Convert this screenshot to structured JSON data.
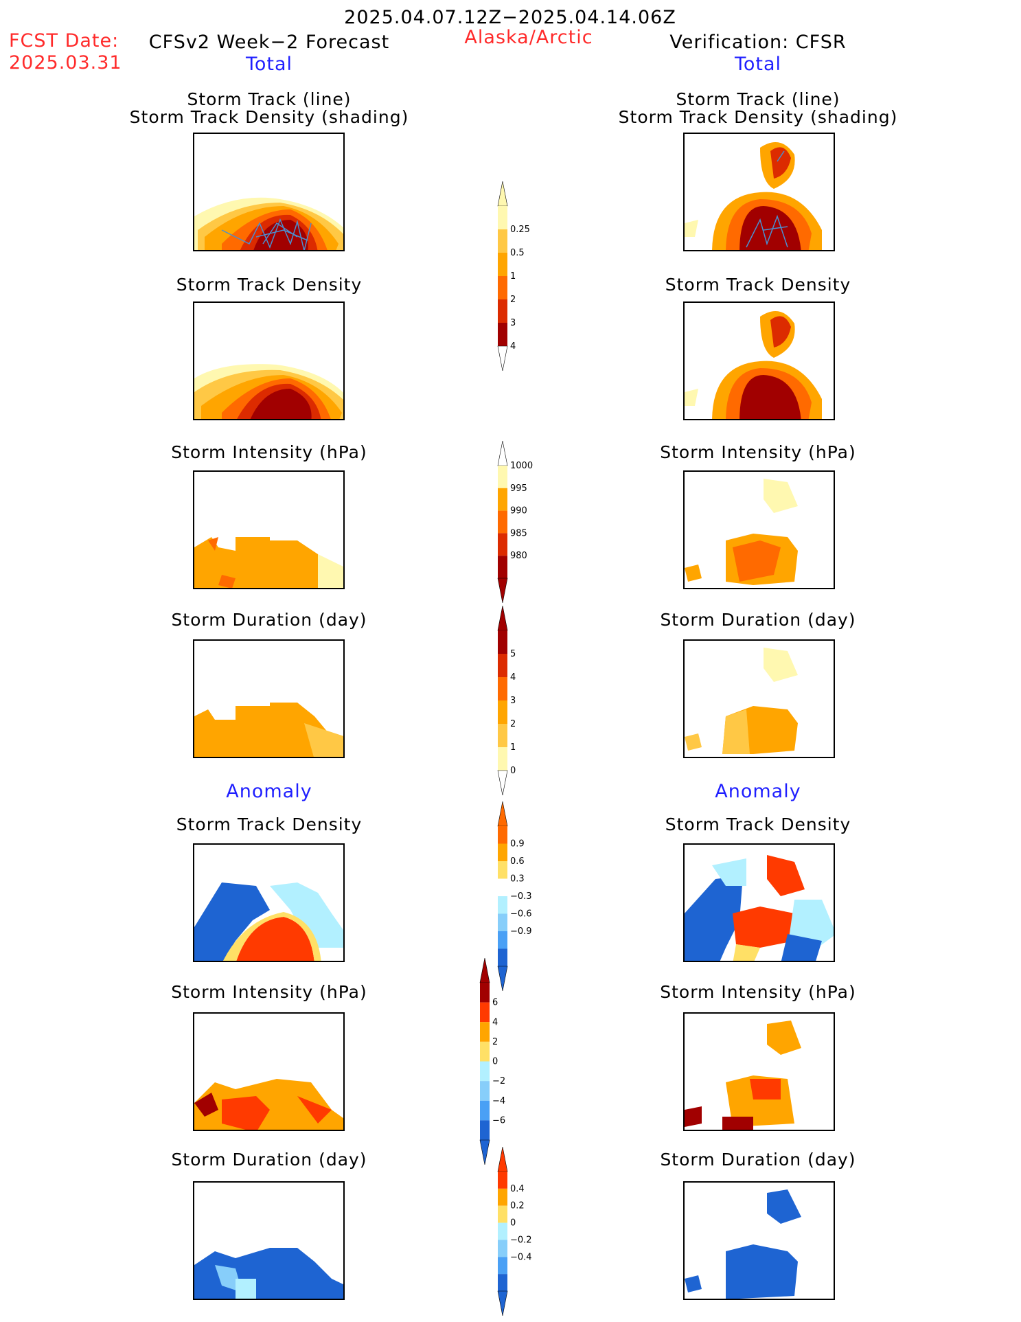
{
  "header": {
    "date_range": "2025.04.07.12Z−2025.04.14.06Z",
    "region": "Alaska/Arctic",
    "fcst_label": "FCST Date:",
    "fcst_date": "2025.03.31",
    "left_title": "CFSv2 Week−2 Forecast",
    "right_title": "Verification: CFSR",
    "total_left": "Total",
    "total_right": "Total",
    "anomaly_left": "Anomaly",
    "anomaly_right": "Anomaly"
  },
  "colors": {
    "deep_red": "#a10000",
    "red": "#dc2b00",
    "orange_red": "#ff6a00",
    "orange": "#ffa500",
    "light_orange": "#ffc845",
    "pale_yellow": "#fff8b0",
    "cyan": "#b2f0ff",
    "light_blue": "#87cefa",
    "blue": "#4aa0f5",
    "dark_blue": "#1e64d2",
    "track": "#4a8fd0"
  },
  "panels": {
    "left": [
      {
        "title": [
          "Storm Track (line)",
          "Storm Track Density (shading)"
        ]
      },
      {
        "title": [
          "Storm Track Density"
        ]
      },
      {
        "title": [
          "Storm Intensity (hPa)"
        ]
      },
      {
        "title": [
          "Storm Duration (day)"
        ]
      },
      {
        "title": [
          "Storm Track Density"
        ]
      },
      {
        "title": [
          "Storm Intensity (hPa)"
        ]
      },
      {
        "title": [
          "Storm Duration (day)"
        ]
      }
    ],
    "right": [
      {
        "title": [
          "Storm Track (line)",
          "Storm Track Density (shading)"
        ]
      },
      {
        "title": [
          "Storm Track Density"
        ]
      },
      {
        "title": [
          "Storm Intensity (hPa)"
        ]
      },
      {
        "title": [
          "Storm Duration (day)"
        ]
      },
      {
        "title": [
          "Storm Track Density"
        ]
      },
      {
        "title": [
          "Storm Intensity (hPa)"
        ]
      },
      {
        "title": [
          "Storm Duration (day)"
        ]
      }
    ]
  },
  "chart_data": [
    {
      "type": "heatmap",
      "colorbar": "Total Storm Track Density",
      "levels": [
        "0.25",
        "0.5",
        "1",
        "2",
        "3",
        "4"
      ],
      "colors": [
        "#fff8b0",
        "#ffc845",
        "#ffa500",
        "#ff6a00",
        "#dc2b00",
        "#a10000"
      ],
      "extend": "max"
    },
    {
      "type": "heatmap",
      "colorbar": "Total Storm Intensity (hPa)",
      "levels": [
        "1000",
        "995",
        "990",
        "985",
        "980"
      ],
      "colors": [
        "#fff8b0",
        "#ffa500",
        "#ff6a00",
        "#dc2b00",
        "#a10000"
      ],
      "extend": "min"
    },
    {
      "type": "heatmap",
      "colorbar": "Total Storm Duration (day)",
      "levels": [
        "5",
        "4",
        "3",
        "2",
        "1",
        "0"
      ],
      "colors": [
        "#a10000",
        "#dc2b00",
        "#ff6a00",
        "#ffa500",
        "#ffc845",
        "#fff8b0"
      ],
      "extend": "max"
    },
    {
      "type": "heatmap",
      "colorbar": "Anomaly Storm Track Density",
      "levels": [
        "0.9",
        "0.6",
        "0.3",
        "−0.3",
        "−0.6",
        "−0.9"
      ],
      "colors": [
        "#ff6a00",
        "#ffa500",
        "#ffe066",
        "#ffffff",
        "#b2f0ff",
        "#87cefa",
        "#4aa0f5",
        "#1e64d2"
      ],
      "extend": "both"
    },
    {
      "type": "heatmap",
      "colorbar": "Anomaly Storm Intensity (hPa)",
      "levels": [
        "6",
        "4",
        "2",
        "0",
        "−2",
        "−4",
        "−6"
      ],
      "colors": [
        "#a10000",
        "#ff3a00",
        "#ffa500",
        "#ffe066",
        "#b2f0ff",
        "#87cefa",
        "#4aa0f5",
        "#1e64d2"
      ],
      "extend": "both"
    },
    {
      "type": "heatmap",
      "colorbar": "Anomaly Storm Duration (day)",
      "levels": [
        "0.4",
        "0.2",
        "0",
        "−0.2",
        "−0.4"
      ],
      "colors": [
        "#ff3a00",
        "#ffa500",
        "#ffe066",
        "#b2f0ff",
        "#87cefa",
        "#4aa0f5",
        "#1e64d2"
      ],
      "extend": "both"
    }
  ]
}
